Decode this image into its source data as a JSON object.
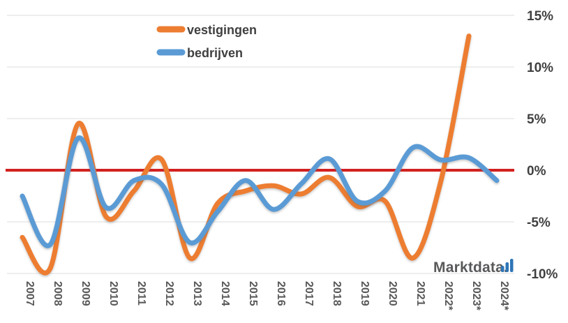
{
  "chart_data": {
    "type": "line",
    "title": "",
    "xlabel": "",
    "ylabel": "",
    "categories": [
      "2007",
      "2008",
      "2009",
      "2010",
      "2011",
      "2012",
      "2013",
      "2014",
      "2015",
      "2016",
      "2017",
      "2018",
      "2019",
      "2020",
      "2021",
      "2022*",
      "2023*",
      "2024*"
    ],
    "series": [
      {
        "name": "vestigingen",
        "color": "#ED7D31",
        "values": [
          -6.5,
          -9.5,
          4.5,
          -4.5,
          -2,
          1,
          -8.5,
          -3.2,
          -2,
          -1.5,
          -2.3,
          -0.7,
          -3.5,
          -3,
          -8.5,
          -1,
          13,
          null
        ]
      },
      {
        "name": "bedrijven",
        "color": "#5B9BD5",
        "values": [
          -2.5,
          -7.2,
          3.1,
          -3.6,
          -1,
          -1.4,
          -7,
          -4,
          -1,
          -3.8,
          -1.3,
          1.1,
          -3,
          -2,
          2.2,
          1,
          1.2,
          -1
        ]
      }
    ],
    "y_ticks": {
      "labels": [
        "15%",
        "10%",
        "5%",
        "0%",
        "-5%",
        "-10%"
      ],
      "values": [
        15,
        10,
        5,
        0,
        -5,
        -10
      ]
    },
    "ylim": [
      -10,
      15
    ],
    "zero_line": {
      "value": 0,
      "color": "#D32020"
    },
    "grid": true,
    "smooth": true,
    "legend_position": "top-left"
  },
  "watermark": {
    "text": "Marktdata.",
    "bars_icon_color": "#2E75B6"
  }
}
